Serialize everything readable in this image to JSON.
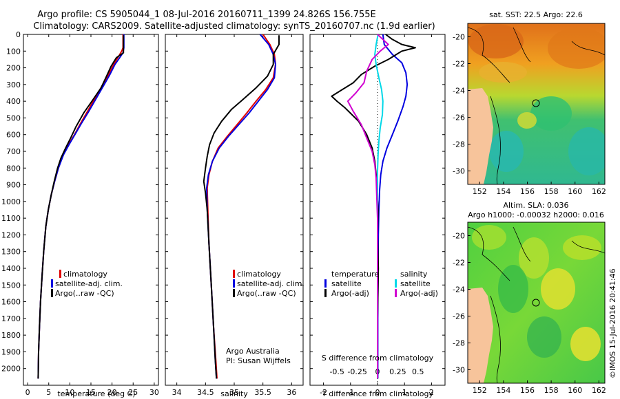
{
  "header": {
    "title_line1": "Argo profile: CS 5905044_1 08-Jul-2016 20160711_1399 24.826S 156.755E",
    "title_line2": "Climatology: CARS2009. Satellite-adjusted climatology: synTS_20160707.nc (1.9d earlier)"
  },
  "chart_data": [
    {
      "type": "line",
      "id": "temperature",
      "xlabel": "temperature (deg C)",
      "ylabel": "",
      "xlim": [
        -1,
        31
      ],
      "ylim": [
        2100,
        0
      ],
      "xticks": [
        0,
        5,
        10,
        15,
        20,
        25,
        30
      ],
      "yticks": [
        0,
        100,
        200,
        300,
        400,
        500,
        600,
        700,
        800,
        900,
        1000,
        1100,
        1200,
        1300,
        1400,
        1500,
        1600,
        1700,
        1800,
        1900,
        2000
      ],
      "legend": [
        "climatology",
        "satellite-adj. clim.",
        "Argo(..raw -QC)"
      ],
      "series": [
        {
          "name": "climatology",
          "color": "#e00000",
          "points": [
            [
              22.6,
              0
            ],
            [
              22.6,
              80
            ],
            [
              22.3,
              100
            ],
            [
              21.6,
              130
            ],
            [
              20.5,
              175
            ],
            [
              19.2,
              240
            ],
            [
              17.6,
              310
            ],
            [
              15.9,
              385
            ],
            [
              14.2,
              460
            ],
            [
              12.6,
              530
            ],
            [
              11.1,
              600
            ],
            [
              9.7,
              660
            ],
            [
              8.4,
              720
            ],
            [
              7.3,
              800
            ],
            [
              6.4,
              880
            ],
            [
              5.6,
              960
            ],
            [
              4.9,
              1050
            ],
            [
              4.3,
              1150
            ],
            [
              3.8,
              1300
            ],
            [
              3.4,
              1450
            ],
            [
              3.05,
              1600
            ],
            [
              2.8,
              1750
            ],
            [
              2.6,
              1900
            ],
            [
              2.5,
              2060
            ]
          ]
        },
        {
          "name": "satellite-adj. clim.",
          "color": "#0000e0",
          "points": [
            [
              22.8,
              0
            ],
            [
              22.8,
              80
            ],
            [
              22.6,
              110
            ],
            [
              21.8,
              140
            ],
            [
              20.7,
              180
            ],
            [
              19.4,
              245
            ],
            [
              17.8,
              315
            ],
            [
              16.1,
              390
            ],
            [
              14.4,
              465
            ],
            [
              12.7,
              535
            ],
            [
              11.2,
              600
            ],
            [
              9.8,
              660
            ],
            [
              8.5,
              720
            ],
            [
              7.3,
              800
            ],
            [
              6.4,
              880
            ],
            [
              5.6,
              960
            ],
            [
              4.9,
              1050
            ],
            [
              4.3,
              1150
            ],
            [
              3.8,
              1300
            ],
            [
              3.4,
              1450
            ],
            [
              3.05,
              1600
            ],
            [
              2.8,
              1750
            ],
            [
              2.6,
              1900
            ],
            [
              2.5,
              2060
            ]
          ]
        },
        {
          "name": "Argo(..raw -QC)",
          "color": "#000000",
          "points": [
            [
              22.7,
              5
            ],
            [
              22.7,
              110
            ],
            [
              21.0,
              140
            ],
            [
              19.8,
              190
            ],
            [
              18.7,
              250
            ],
            [
              17.4,
              320
            ],
            [
              15.5,
              390
            ],
            [
              13.3,
              470
            ],
            [
              11.5,
              550
            ],
            [
              10.2,
              620
            ],
            [
              9.0,
              680
            ],
            [
              7.9,
              740
            ],
            [
              7.1,
              800
            ],
            [
              6.3,
              880
            ],
            [
              5.6,
              960
            ],
            [
              4.9,
              1050
            ],
            [
              4.3,
              1150
            ],
            [
              3.8,
              1300
            ],
            [
              3.4,
              1450
            ],
            [
              3.05,
              1600
            ],
            [
              2.8,
              1750
            ],
            [
              2.6,
              1900
            ],
            [
              2.5,
              2060
            ]
          ]
        }
      ]
    },
    {
      "type": "line",
      "id": "salinity",
      "xlabel": "salinity",
      "xlim": [
        33.8,
        36.2
      ],
      "ylim": [
        2100,
        0
      ],
      "xticks": [
        34,
        34.5,
        35,
        35.5,
        36
      ],
      "legend": [
        "climatology",
        "satellite-adj. clim.",
        "Argo(..raw -QC)"
      ],
      "annotation_line1": "Argo Australia",
      "annotation_line2": "PI: Susan Wijffels",
      "series": [
        {
          "name": "climatology",
          "color": "#e00000",
          "points": [
            [
              35.5,
              0
            ],
            [
              35.62,
              60
            ],
            [
              35.7,
              120
            ],
            [
              35.72,
              180
            ],
            [
              35.68,
              260
            ],
            [
              35.55,
              330
            ],
            [
              35.38,
              400
            ],
            [
              35.22,
              470
            ],
            [
              35.05,
              540
            ],
            [
              34.88,
              610
            ],
            [
              34.72,
              680
            ],
            [
              34.62,
              760
            ],
            [
              34.56,
              840
            ],
            [
              34.53,
              920
            ],
            [
              34.54,
              1050
            ],
            [
              34.56,
              1250
            ],
            [
              34.6,
              1500
            ],
            [
              34.64,
              1750
            ],
            [
              34.68,
              1950
            ],
            [
              34.7,
              2060
            ]
          ]
        },
        {
          "name": "satellite-adj. clim.",
          "color": "#0000e0",
          "points": [
            [
              35.45,
              0
            ],
            [
              35.6,
              60
            ],
            [
              35.68,
              120
            ],
            [
              35.72,
              180
            ],
            [
              35.7,
              260
            ],
            [
              35.58,
              330
            ],
            [
              35.42,
              400
            ],
            [
              35.26,
              470
            ],
            [
              35.08,
              540
            ],
            [
              34.9,
              610
            ],
            [
              34.74,
              680
            ],
            [
              34.62,
              760
            ],
            [
              34.55,
              840
            ],
            [
              34.52,
              920
            ],
            [
              34.53,
              1050
            ],
            [
              34.56,
              1250
            ],
            [
              34.6,
              1500
            ],
            [
              34.64,
              1750
            ],
            [
              34.67,
              1950
            ],
            [
              34.69,
              2060
            ]
          ]
        },
        {
          "name": "Argo(..raw -QC)",
          "color": "#000000",
          "points": [
            [
              35.78,
              5
            ],
            [
              35.78,
              60
            ],
            [
              35.68,
              120
            ],
            [
              35.68,
              180
            ],
            [
              35.58,
              250
            ],
            [
              35.38,
              320
            ],
            [
              35.15,
              390
            ],
            [
              34.95,
              450
            ],
            [
              34.78,
              520
            ],
            [
              34.65,
              590
            ],
            [
              34.57,
              660
            ],
            [
              34.53,
              730
            ],
            [
              34.5,
              800
            ],
            [
              34.47,
              880
            ],
            [
              34.5,
              950
            ],
            [
              34.53,
              1050
            ],
            [
              34.56,
              1250
            ],
            [
              34.6,
              1500
            ],
            [
              34.64,
              1750
            ],
            [
              34.67,
              1950
            ],
            [
              34.69,
              2060
            ]
          ]
        }
      ]
    },
    {
      "type": "line",
      "id": "difference",
      "xlabel": "T difference from climatology",
      "top_xlabel": "S difference from climatology",
      "xlim": [
        -2.5,
        2.5
      ],
      "ylim": [
        2100,
        0
      ],
      "xticks": [
        -2,
        -1,
        0,
        1,
        2
      ],
      "top_xticks": [
        -0.5,
        -0.25,
        0,
        0.25,
        0.5
      ],
      "legend_temperature_title": "temperature",
      "legend_salinity_title": "salinity",
      "legend": [
        "satellite",
        "Argo(-adj)",
        "satellite",
        "Argo(-adj)"
      ],
      "series": [
        {
          "name": "temperature satellite",
          "color": "#0000e0",
          "points": [
            [
              0.2,
              0
            ],
            [
              0.25,
              60
            ],
            [
              0.55,
              120
            ],
            [
              0.9,
              170
            ],
            [
              1.05,
              230
            ],
            [
              1.1,
              300
            ],
            [
              1.05,
              370
            ],
            [
              0.95,
              430
            ],
            [
              0.75,
              520
            ],
            [
              0.55,
              600
            ],
            [
              0.35,
              680
            ],
            [
              0.2,
              760
            ],
            [
              0.12,
              840
            ],
            [
              0.08,
              930
            ],
            [
              0.05,
              1050
            ],
            [
              0.03,
              1200
            ],
            [
              0.02,
              1400
            ],
            [
              0.01,
              1700
            ],
            [
              0.01,
              2060
            ]
          ]
        },
        {
          "name": "temperature Argo(-adj)",
          "color": "#000000",
          "points": [
            [
              0.3,
              0
            ],
            [
              0.55,
              30
            ],
            [
              0.9,
              60
            ],
            [
              1.4,
              80
            ],
            [
              0.9,
              100
            ],
            [
              0.7,
              120
            ],
            [
              0.4,
              150
            ],
            [
              -0.1,
              190
            ],
            [
              -0.6,
              240
            ],
            [
              -0.9,
              290
            ],
            [
              -1.3,
              330
            ],
            [
              -1.7,
              370
            ],
            [
              -1.5,
              400
            ],
            [
              -1.2,
              440
            ],
            [
              -0.7,
              520
            ],
            [
              -0.4,
              600
            ],
            [
              -0.2,
              680
            ],
            [
              -0.1,
              760
            ],
            [
              -0.05,
              840
            ],
            [
              -0.02,
              930
            ],
            [
              0.02,
              1050
            ],
            [
              0.0,
              1200
            ],
            [
              0.03,
              1400
            ],
            [
              0.0,
              1700
            ],
            [
              0.0,
              2060
            ]
          ]
        },
        {
          "name": "salinity satellite",
          "color": "#00d8e8",
          "points": [
            [
              0.02,
              0
            ],
            [
              -0.05,
              60
            ],
            [
              -0.1,
              120
            ],
            [
              -0.05,
              180
            ],
            [
              0.05,
              260
            ],
            [
              0.15,
              330
            ],
            [
              0.2,
              400
            ],
            [
              0.18,
              480
            ],
            [
              0.1,
              560
            ],
            [
              0.05,
              640
            ],
            [
              0.02,
              720
            ],
            [
              0.0,
              820
            ],
            [
              0.0,
              1000
            ],
            [
              0.0,
              2060
            ]
          ]
        },
        {
          "name": "salinity Argo(-adj)",
          "color": "#d000d0",
          "points": [
            [
              0.0,
              0
            ],
            [
              0.2,
              30
            ],
            [
              0.4,
              60
            ],
            [
              0.1,
              100
            ],
            [
              -0.2,
              150
            ],
            [
              -0.4,
              220
            ],
            [
              -0.5,
              290
            ],
            [
              -0.8,
              350
            ],
            [
              -1.1,
              400
            ],
            [
              -0.9,
              460
            ],
            [
              -0.6,
              540
            ],
            [
              -0.4,
              620
            ],
            [
              -0.2,
              700
            ],
            [
              -0.1,
              780
            ],
            [
              -0.05,
              860
            ],
            [
              -0.03,
              960
            ],
            [
              0.0,
              1100
            ],
            [
              0.0,
              1400
            ],
            [
              0.0,
              2060
            ]
          ]
        }
      ]
    },
    {
      "type": "heatmap",
      "id": "sst_map",
      "title": "sat. SST: 22.5  Argo: 22.6",
      "xlim": [
        151,
        162.5
      ],
      "ylim": [
        -31,
        -19
      ],
      "xticks": [
        152,
        154,
        156,
        158,
        160,
        162
      ],
      "yticks": [
        -20,
        -22,
        -24,
        -26,
        -28,
        -30
      ]
    },
    {
      "type": "heatmap",
      "id": "sla_map",
      "title_line1": "Altim. SLA: 0.036",
      "title_line2": "Argo h1000: -0.00032  h2000: 0.016",
      "side_text": "©IMOS 15-Jul-2016 20:41:46",
      "xlim": [
        151,
        162.5
      ],
      "ylim": [
        -31,
        -19
      ],
      "xticks": [
        152,
        154,
        156,
        158,
        160,
        162
      ],
      "yticks": [
        -20,
        -22,
        -24,
        -26,
        -28,
        -30
      ]
    }
  ],
  "colors": {
    "climatology": "#e00000",
    "satellite": "#0000e0",
    "argo": "#000000",
    "salinity_satellite": "#00d8e8",
    "salinity_argo": "#d000d0",
    "land": "#f7c49b"
  }
}
